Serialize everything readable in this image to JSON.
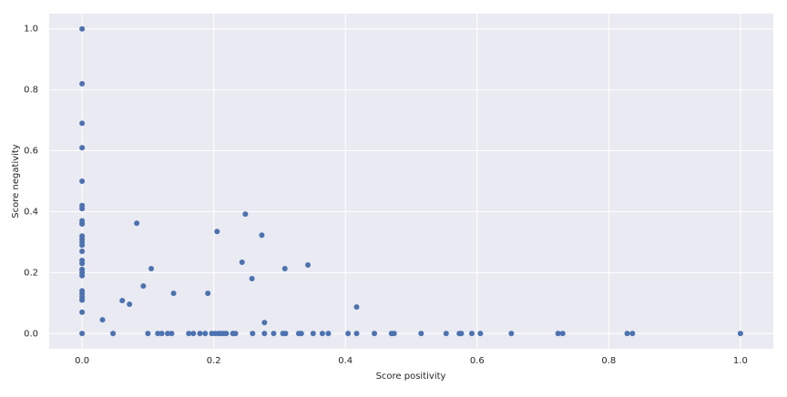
{
  "chart_data": {
    "type": "scatter",
    "xlabel": "Score positivity",
    "ylabel": "Score negativity",
    "x": [
      0,
      0,
      0,
      0,
      0,
      0,
      0,
      0,
      0,
      0,
      0,
      0,
      0,
      0,
      0,
      0,
      0,
      0,
      0,
      0,
      0,
      0,
      0,
      0,
      0,
      0,
      0,
      0,
      0.031,
      0.047,
      0.061,
      0.072,
      0.083,
      0.093,
      0.1,
      0.105,
      0.115,
      0.121,
      0.13,
      0.136,
      0.139,
      0.162,
      0.169,
      0.179,
      0.187,
      0.191,
      0.197,
      0.202,
      0.205,
      0.207,
      0.211,
      0.215,
      0.219,
      0.229,
      0.233,
      0.243,
      0.248,
      0.258,
      0.259,
      0.273,
      0.277,
      0.277,
      0.291,
      0.305,
      0.308,
      0.309,
      0.329,
      0.333,
      0.343,
      0.351,
      0.365,
      0.374,
      0.404,
      0.417,
      0.417,
      0.444,
      0.47,
      0.474,
      0.515,
      0.553,
      0.573,
      0.576,
      0.592,
      0.605,
      0.652,
      0.723,
      0.73,
      0.828,
      0.836,
      1.0
    ],
    "y": [
      1.0,
      0.82,
      0.69,
      0.61,
      0.5,
      0.42,
      0.41,
      0.37,
      0.36,
      0.36,
      0.32,
      0.31,
      0.3,
      0.29,
      0.27,
      0.24,
      0.23,
      0.21,
      0.21,
      0.2,
      0.19,
      0.14,
      0.13,
      0.12,
      0.11,
      0.11,
      0.07,
      0,
      0.045,
      0,
      0.108,
      0.096,
      0.362,
      0.156,
      0,
      0.213,
      0,
      0,
      0,
      0,
      0.132,
      0,
      0,
      0,
      0,
      0.132,
      0,
      0,
      0.335,
      0,
      0,
      0,
      0,
      0,
      0,
      0.234,
      0.392,
      0.18,
      0,
      0.323,
      0.036,
      0,
      0,
      0,
      0.213,
      0,
      0,
      0,
      0.225,
      0,
      0,
      0,
      0,
      0,
      0.087,
      0,
      0,
      0,
      0,
      0,
      0,
      0,
      0,
      0,
      0,
      0,
      0,
      0,
      0,
      0
    ],
    "color": "#4c72b0",
    "xlim": [
      -0.05,
      1.05
    ],
    "ylim": [
      -0.05,
      1.05
    ],
    "xticks": [
      {
        "value": 0,
        "label": "0.0"
      },
      {
        "value": 0.2,
        "label": "0.2"
      },
      {
        "value": 0.4,
        "label": "0.4"
      },
      {
        "value": 0.6,
        "label": "0.6"
      },
      {
        "value": 0.8,
        "label": "0.8"
      },
      {
        "value": 1,
        "label": "1.0"
      }
    ],
    "yticks": [
      {
        "value": 0,
        "label": "0.0"
      },
      {
        "value": 0.2,
        "label": "0.2"
      },
      {
        "value": 0.4,
        "label": "0.4"
      },
      {
        "value": 0.6,
        "label": "0.6"
      },
      {
        "value": 0.8,
        "label": "0.8"
      },
      {
        "value": 1,
        "label": "1.0"
      }
    ],
    "grid": true
  }
}
